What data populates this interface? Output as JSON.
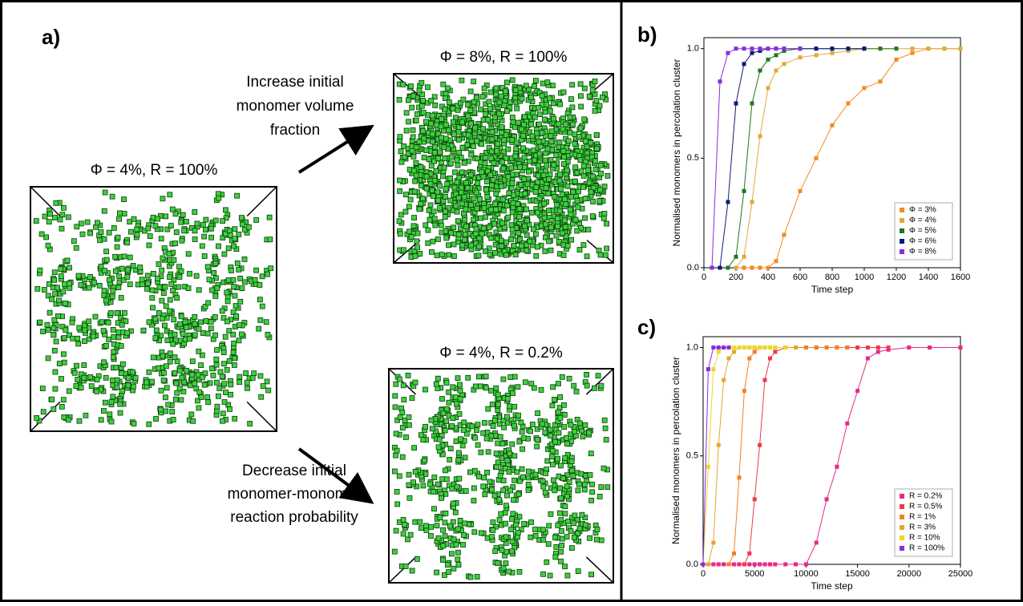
{
  "panel_a": {
    "label": "a)",
    "initial_label": "Φ = 4%, R = 100%",
    "top_label": "Φ = 8%, R = 100%",
    "bottom_label": "Φ = 4%, R = 0.2%",
    "increase_text": [
      "Increase initial",
      "monomer volume",
      "fraction"
    ],
    "decrease_text": [
      "Decrease initial",
      "monomer-monomer",
      "reaction probability"
    ]
  },
  "chart_data": [
    {
      "type": "line",
      "panel_label": "b)",
      "x_label": "Time step",
      "y_label": "Normalised monomers in percolation cluster",
      "x": [
        0,
        50,
        100,
        150,
        200,
        250,
        300,
        350,
        400,
        450,
        500,
        600,
        700,
        800,
        900,
        1000,
        1100,
        1200,
        1300,
        1400,
        1500,
        1600
      ],
      "series": [
        {
          "name": "Φ = 3%",
          "color": "#f28a1f",
          "values": [
            null,
            null,
            null,
            null,
            0,
            0,
            0,
            0,
            0,
            0.03,
            0.15,
            0.35,
            0.5,
            0.65,
            0.75,
            0.82,
            0.85,
            0.95,
            0.98,
            1,
            1,
            1
          ]
        },
        {
          "name": "Φ = 4%",
          "color": "#e0a93a",
          "values": [
            null,
            null,
            null,
            null,
            0,
            0.05,
            0.3,
            0.6,
            0.82,
            0.9,
            0.93,
            0.96,
            0.97,
            0.98,
            0.99,
            1,
            1,
            1,
            1,
            1,
            1,
            1
          ]
        },
        {
          "name": "Φ = 5%",
          "color": "#1e7a1e",
          "values": [
            null,
            null,
            null,
            0,
            0.05,
            0.35,
            0.75,
            0.9,
            0.95,
            0.97,
            0.99,
            1,
            1,
            1,
            1,
            1,
            1,
            1,
            null,
            null,
            null,
            null
          ]
        },
        {
          "name": "Φ = 6%",
          "color": "#0c1a7a",
          "values": [
            null,
            null,
            0,
            0.3,
            0.75,
            0.93,
            0.98,
            0.99,
            1,
            1,
            1,
            1,
            1,
            1,
            1,
            1,
            null,
            null,
            null,
            null,
            null,
            null
          ]
        },
        {
          "name": "Φ = 8%",
          "color": "#8a2be2",
          "values": [
            null,
            0,
            0.85,
            0.98,
            1,
            1,
            1,
            1,
            1,
            1,
            1,
            1,
            null,
            null,
            null,
            null,
            null,
            null,
            null,
            null,
            null,
            null
          ]
        }
      ],
      "xlim": [
        0,
        1600
      ],
      "xticks": [
        0,
        200,
        400,
        600,
        800,
        1000,
        1200,
        1400,
        1600
      ],
      "ylim": [
        0,
        1.05
      ],
      "yticks": [
        {
          "value": 0,
          "label": "0.0"
        },
        {
          "value": 0.5,
          "label": "0.5"
        },
        {
          "value": 1,
          "label": "1.0"
        }
      ],
      "legend": "lower right"
    },
    {
      "type": "line",
      "panel_label": "c)",
      "x_label": "Time step",
      "y_label": "Normalised monomers in percolation cluster",
      "x": [
        0,
        500,
        1000,
        1500,
        2000,
        2500,
        3000,
        3500,
        4000,
        4500,
        5000,
        5500,
        6000,
        6500,
        7000,
        8000,
        9000,
        10000,
        11000,
        12000,
        13000,
        14000,
        15000,
        16000,
        17000,
        18000,
        20000,
        22000,
        25000
      ],
      "series": [
        {
          "name": "R = 0.2%",
          "color": "#e8288c",
          "values": [
            0,
            0,
            0,
            0,
            0,
            0,
            0,
            0,
            0,
            0,
            0,
            0,
            0,
            0,
            0,
            0,
            0,
            0,
            0.1,
            0.3,
            0.45,
            0.65,
            0.8,
            0.95,
            0.98,
            0.99,
            1,
            1,
            1
          ]
        },
        {
          "name": "R = 0.5%",
          "color": "#ef3a4a",
          "values": [
            null,
            null,
            null,
            null,
            null,
            null,
            null,
            null,
            0,
            0.05,
            0.3,
            0.55,
            0.85,
            0.95,
            0.98,
            1,
            1,
            1,
            1,
            1,
            1,
            1,
            1,
            1,
            1,
            1,
            null,
            null,
            null
          ]
        },
        {
          "name": "R = 1%",
          "color": "#f2802a",
          "values": [
            null,
            null,
            null,
            null,
            null,
            0,
            0.05,
            0.4,
            0.8,
            0.95,
            0.98,
            1,
            1,
            1,
            1,
            1,
            1,
            1,
            1,
            1,
            1,
            1,
            null,
            null,
            null,
            null,
            null,
            null,
            null
          ]
        },
        {
          "name": "R = 3%",
          "color": "#e2a830",
          "values": [
            null,
            0,
            0.1,
            0.55,
            0.85,
            0.95,
            0.98,
            1,
            1,
            1,
            1,
            1,
            1,
            1,
            1,
            1,
            1,
            null,
            null,
            null,
            null,
            null,
            null,
            null,
            null,
            null,
            null,
            null,
            null
          ]
        },
        {
          "name": "R = 10%",
          "color": "#ecd824",
          "values": [
            0,
            0.45,
            0.9,
            0.98,
            1,
            1,
            1,
            1,
            1,
            1,
            1,
            1,
            1,
            1,
            1,
            1,
            null,
            null,
            null,
            null,
            null,
            null,
            null,
            null,
            null,
            null,
            null,
            null,
            null
          ]
        },
        {
          "name": "R = 100%",
          "color": "#8a2be2",
          "values": [
            0,
            0.9,
            1,
            1,
            1,
            1,
            null,
            null,
            null,
            null,
            null,
            null,
            null,
            null,
            null,
            null,
            null,
            null,
            null,
            null,
            null,
            null,
            null,
            null,
            null,
            null,
            null,
            null,
            null
          ]
        }
      ],
      "xlim": [
        0,
        25000
      ],
      "xticks": [
        0,
        5000,
        10000,
        15000,
        20000,
        25000
      ],
      "ylim": [
        0,
        1.05
      ],
      "yticks": [
        {
          "value": 0,
          "label": "0.0"
        },
        {
          "value": 0.5,
          "label": "0.5"
        },
        {
          "value": 1,
          "label": "1.0"
        }
      ],
      "legend": "lower right"
    }
  ]
}
